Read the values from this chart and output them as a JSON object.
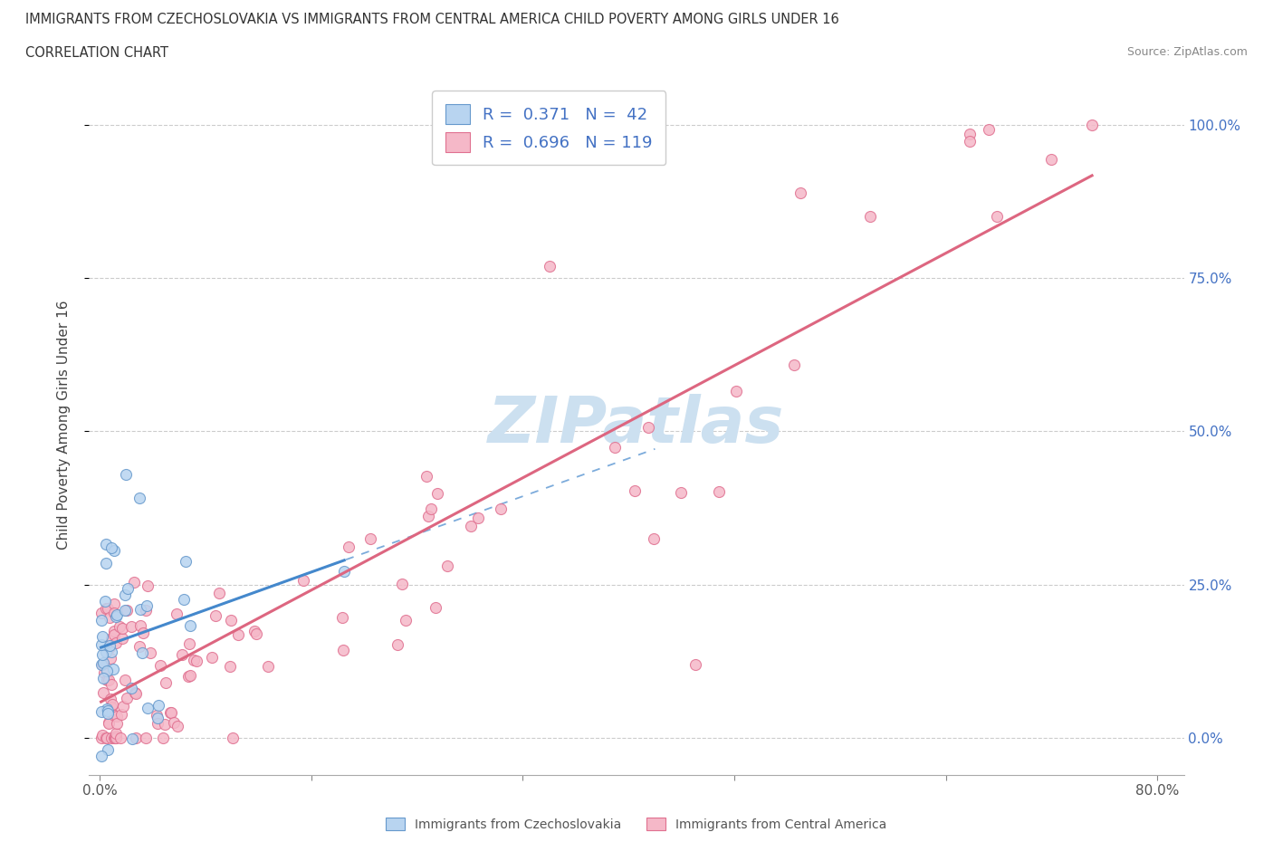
{
  "title": "IMMIGRANTS FROM CZECHOSLOVAKIA VS IMMIGRANTS FROM CENTRAL AMERICA CHILD POVERTY AMONG GIRLS UNDER 16",
  "subtitle": "CORRELATION CHART",
  "source": "Source: ZipAtlas.com",
  "ylabel_label": "Child Poverty Among Girls Under 16",
  "r_czech": 0.371,
  "n_czech": 42,
  "r_central": 0.696,
  "n_central": 119,
  "color_czech_face": "#b8d4f0",
  "color_czech_edge": "#6699cc",
  "color_central_face": "#f5b8c8",
  "color_central_edge": "#e07090",
  "line_color_czech": "#4488cc",
  "line_color_central": "#dd6680",
  "watermark_color": "#cce0f0",
  "y_tick_labels": [
    "0.0%",
    "25.0%",
    "50.0%",
    "75.0%",
    "100.0%"
  ],
  "y_tick_color": "#4472c4",
  "x_tick_labels_show": [
    "0.0%",
    "80.0%"
  ],
  "legend_text_color": "#4472c4",
  "legend_RN_color": "#333333",
  "grid_color": "#cccccc",
  "grid_style": "--",
  "bottom_legend_color": "#555555"
}
